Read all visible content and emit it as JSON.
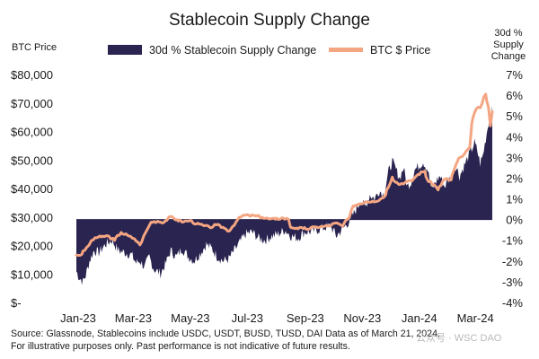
{
  "chart_data": {
    "type": "area",
    "title": "Stablecoin Supply Change",
    "left_axis_title": "BTC Price",
    "right_axis_title": [
      "30d %",
      "Supply",
      "Change"
    ],
    "left_ticks": [
      "$80,000",
      "$70,000",
      "$60,000",
      "$50,000",
      "$40,000",
      "$30,000",
      "$20,000",
      "$10,000",
      "$-"
    ],
    "left_tick_values": [
      80000,
      70000,
      60000,
      50000,
      40000,
      30000,
      20000,
      10000,
      0
    ],
    "right_ticks": [
      "7%",
      "6%",
      "5%",
      "4%",
      "3%",
      "2%",
      "1%",
      "0%",
      "-1%",
      "-2%",
      "-3%",
      "-4%"
    ],
    "right_tick_values": [
      7,
      6,
      5,
      4,
      3,
      2,
      1,
      0,
      -1,
      -2,
      -3,
      -4
    ],
    "x_ticks": [
      "Jan-23",
      "Mar-23",
      "May-23",
      "Jul-23",
      "Sep-23",
      "Nov-23",
      "Jan-24",
      "Mar-24"
    ],
    "x_tick_dates": [
      "2023-01-01",
      "2023-03-01",
      "2023-05-01",
      "2023-07-01",
      "2023-09-01",
      "2023-11-01",
      "2024-01-01",
      "2024-03-01"
    ],
    "x_range": [
      "2023-01-01",
      "2024-03-21"
    ],
    "ylim_left": [
      0,
      80000
    ],
    "ylim_right": [
      -4,
      7
    ],
    "grid": false,
    "legend_position": "top",
    "series": [
      {
        "name": "30d % Stablecoin Supply Change",
        "kind": "area",
        "axis": "right",
        "color": "#2a2450",
        "points": [
          [
            "2023-01-01",
            -2.5
          ],
          [
            "2023-01-04",
            -2.8
          ],
          [
            "2023-01-08",
            -3.0
          ],
          [
            "2023-01-11",
            -2.7
          ],
          [
            "2023-01-15",
            -2.0
          ],
          [
            "2023-01-20",
            -1.5
          ],
          [
            "2023-01-25",
            -1.6
          ],
          [
            "2023-02-01",
            -1.2
          ],
          [
            "2023-02-08",
            -1.0
          ],
          [
            "2023-02-15",
            -1.5
          ],
          [
            "2023-02-22",
            -1.6
          ],
          [
            "2023-03-01",
            -1.7
          ],
          [
            "2023-03-06",
            -2.1
          ],
          [
            "2023-03-10",
            -2.0
          ],
          [
            "2023-03-15",
            -2.3
          ],
          [
            "2023-03-20",
            -1.8
          ],
          [
            "2023-03-25",
            -2.4
          ],
          [
            "2023-04-01",
            -2.6
          ],
          [
            "2023-04-06",
            -2.2
          ],
          [
            "2023-04-12",
            -1.5
          ],
          [
            "2023-04-18",
            -1.8
          ],
          [
            "2023-04-24",
            -1.4
          ],
          [
            "2023-05-01",
            -1.8
          ],
          [
            "2023-05-07",
            -2.0
          ],
          [
            "2023-05-14",
            -1.6
          ],
          [
            "2023-05-20",
            -1.2
          ],
          [
            "2023-05-26",
            -1.4
          ],
          [
            "2023-06-01",
            -1.8
          ],
          [
            "2023-06-07",
            -2.0
          ],
          [
            "2023-06-13",
            -1.9
          ],
          [
            "2023-06-19",
            -1.5
          ],
          [
            "2023-06-25",
            -1.1
          ],
          [
            "2023-07-01",
            -0.7
          ],
          [
            "2023-07-08",
            -0.6
          ],
          [
            "2023-07-15",
            -0.9
          ],
          [
            "2023-07-22",
            -1.0
          ],
          [
            "2023-07-29",
            -0.8
          ],
          [
            "2023-08-05",
            -0.7
          ],
          [
            "2023-08-12",
            -0.5
          ],
          [
            "2023-08-19",
            -0.8
          ],
          [
            "2023-08-26",
            -0.9
          ],
          [
            "2023-09-02",
            -0.6
          ],
          [
            "2023-09-09",
            -0.6
          ],
          [
            "2023-09-16",
            -0.5
          ],
          [
            "2023-09-23",
            -0.4
          ],
          [
            "2023-09-30",
            -0.3
          ],
          [
            "2023-10-06",
            -0.8
          ],
          [
            "2023-10-12",
            -0.5
          ],
          [
            "2023-10-18",
            -0.2
          ],
          [
            "2023-10-25",
            0.3
          ],
          [
            "2023-11-01",
            0.9
          ],
          [
            "2023-11-06",
            0.6
          ],
          [
            "2023-11-11",
            1.2
          ],
          [
            "2023-11-16",
            1.0
          ],
          [
            "2023-11-21",
            1.4
          ],
          [
            "2023-11-26",
            1.2
          ],
          [
            "2023-12-01",
            2.3
          ],
          [
            "2023-12-05",
            2.8
          ],
          [
            "2023-12-09",
            2.4
          ],
          [
            "2023-12-13",
            2.0
          ],
          [
            "2023-12-17",
            2.5
          ],
          [
            "2023-12-21",
            1.6
          ],
          [
            "2023-12-25",
            1.8
          ],
          [
            "2023-12-29",
            2.4
          ],
          [
            "2024-01-03",
            2.6
          ],
          [
            "2024-01-07",
            2.8
          ],
          [
            "2024-01-12",
            2.4
          ],
          [
            "2024-01-16",
            1.4
          ],
          [
            "2024-01-20",
            1.8
          ],
          [
            "2024-01-25",
            2.1
          ],
          [
            "2024-01-30",
            1.6
          ],
          [
            "2024-02-03",
            1.9
          ],
          [
            "2024-02-07",
            2.2
          ],
          [
            "2024-02-11",
            2.6
          ],
          [
            "2024-02-15",
            2.1
          ],
          [
            "2024-02-19",
            2.5
          ],
          [
            "2024-02-23",
            2.9
          ],
          [
            "2024-02-27",
            3.3
          ],
          [
            "2024-03-02",
            3.7
          ],
          [
            "2024-03-05",
            3.3
          ],
          [
            "2024-03-08",
            2.7
          ],
          [
            "2024-03-11",
            3.1
          ],
          [
            "2024-03-14",
            3.9
          ],
          [
            "2024-03-17",
            4.7
          ],
          [
            "2024-03-21",
            5.5
          ]
        ]
      },
      {
        "name": "BTC $ Price",
        "kind": "line",
        "axis": "left",
        "color": "#f4a582",
        "points": [
          [
            "2023-01-01",
            16600
          ],
          [
            "2023-01-07",
            16900
          ],
          [
            "2023-01-14",
            19900
          ],
          [
            "2023-01-21",
            22700
          ],
          [
            "2023-01-28",
            23000
          ],
          [
            "2023-02-04",
            23400
          ],
          [
            "2023-02-11",
            21800
          ],
          [
            "2023-02-18",
            24600
          ],
          [
            "2023-02-25",
            23500
          ],
          [
            "2023-03-04",
            22400
          ],
          [
            "2023-03-10",
            20200
          ],
          [
            "2023-03-16",
            24500
          ],
          [
            "2023-03-22",
            28200
          ],
          [
            "2023-03-29",
            28500
          ],
          [
            "2023-04-05",
            28200
          ],
          [
            "2023-04-12",
            30100
          ],
          [
            "2023-04-19",
            29000
          ],
          [
            "2023-04-26",
            28300
          ],
          [
            "2023-05-03",
            28800
          ],
          [
            "2023-05-10",
            27600
          ],
          [
            "2023-05-17",
            27000
          ],
          [
            "2023-05-24",
            26300
          ],
          [
            "2023-05-31",
            27200
          ],
          [
            "2023-06-07",
            26400
          ],
          [
            "2023-06-14",
            25100
          ],
          [
            "2023-06-21",
            28300
          ],
          [
            "2023-06-28",
            30500
          ],
          [
            "2023-07-05",
            30500
          ],
          [
            "2023-07-12",
            30400
          ],
          [
            "2023-07-19",
            29900
          ],
          [
            "2023-07-26",
            29300
          ],
          [
            "2023-08-02",
            29200
          ],
          [
            "2023-08-09",
            29700
          ],
          [
            "2023-08-16",
            29200
          ],
          [
            "2023-08-18",
            26500
          ],
          [
            "2023-08-25",
            26100
          ],
          [
            "2023-09-01",
            25900
          ],
          [
            "2023-09-08",
            25900
          ],
          [
            "2023-09-15",
            26500
          ],
          [
            "2023-09-22",
            26600
          ],
          [
            "2023-09-29",
            26900
          ],
          [
            "2023-10-06",
            27900
          ],
          [
            "2023-10-13",
            26800
          ],
          [
            "2023-10-20",
            29700
          ],
          [
            "2023-10-24",
            33900
          ],
          [
            "2023-10-31",
            34600
          ],
          [
            "2023-11-07",
            35400
          ],
          [
            "2023-11-14",
            35600
          ],
          [
            "2023-11-21",
            35800
          ],
          [
            "2023-11-28",
            37800
          ],
          [
            "2023-12-05",
            44000
          ],
          [
            "2023-12-12",
            41400
          ],
          [
            "2023-12-19",
            42200
          ],
          [
            "2023-12-26",
            42600
          ],
          [
            "2024-01-02",
            45000
          ],
          [
            "2024-01-09",
            46100
          ],
          [
            "2024-01-12",
            42800
          ],
          [
            "2024-01-19",
            41300
          ],
          [
            "2024-01-23",
            39500
          ],
          [
            "2024-01-30",
            43300
          ],
          [
            "2024-02-06",
            43000
          ],
          [
            "2024-02-13",
            49700
          ],
          [
            "2024-02-20",
            52000
          ],
          [
            "2024-02-26",
            54500
          ],
          [
            "2024-02-28",
            62500
          ],
          [
            "2024-03-04",
            68000
          ],
          [
            "2024-03-08",
            68300
          ],
          [
            "2024-03-12",
            72100
          ],
          [
            "2024-03-14",
            73100
          ],
          [
            "2024-03-17",
            68400
          ],
          [
            "2024-03-19",
            62000
          ],
          [
            "2024-03-21",
            67000
          ]
        ]
      }
    ]
  },
  "footnotes": [
    "Source: Glassnode, Stablecoins include USDC, USDT, BUSD, TUSD, DAI Data as of March 21, 2024.",
    "For illustrative purposes only. Past performance is not indicative of future results."
  ],
  "watermark": "公众号 · WSC DAO"
}
